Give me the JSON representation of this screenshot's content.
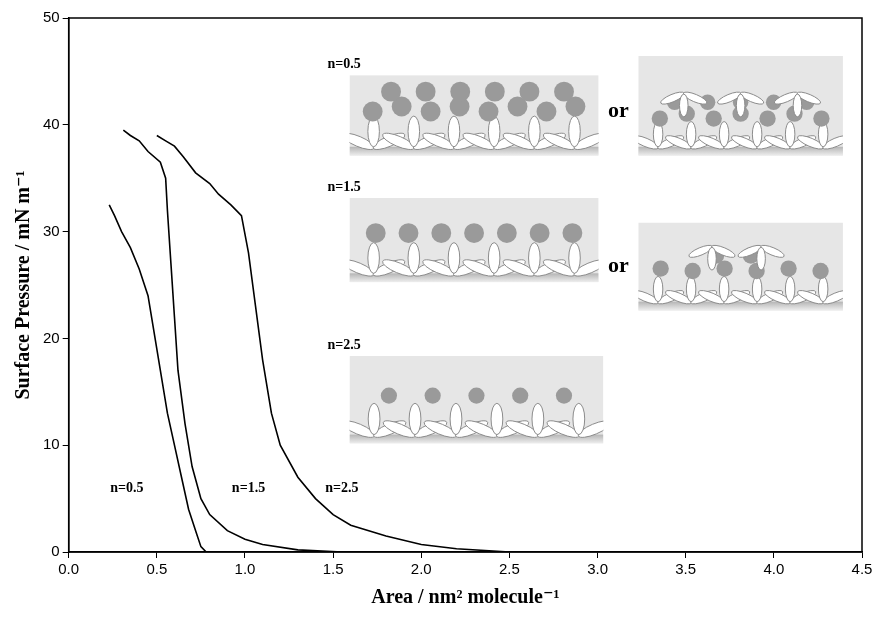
{
  "chart_data": {
    "type": "line",
    "x_label": "Area / nm² molecule⁻¹",
    "y_label": "Surface Pressure / mN m⁻¹",
    "xlim": [
      0,
      4.5
    ],
    "xticks": [
      {
        "value": 0,
        "label": "0.0"
      },
      {
        "value": 0.5,
        "label": "0.5"
      },
      {
        "value": 1,
        "label": "1.0"
      },
      {
        "value": 1.5,
        "label": "1.5"
      },
      {
        "value": 2,
        "label": "2.0"
      },
      {
        "value": 2.5,
        "label": "2.5"
      },
      {
        "value": 3,
        "label": "3.0"
      },
      {
        "value": 3.5,
        "label": "3.5"
      },
      {
        "value": 4,
        "label": "4.0"
      },
      {
        "value": 4.5,
        "label": "4.5"
      }
    ],
    "ylim": [
      0,
      50
    ],
    "yticks": [
      0,
      10,
      20,
      30,
      40,
      50
    ],
    "grid": false,
    "series": [
      {
        "color": "#000000",
        "x": [
          0.78,
          0.75,
          0.72,
          0.68,
          0.64,
          0.6,
          0.56,
          0.52,
          0.48,
          0.45,
          0.4,
          0.35,
          0.3,
          0.26,
          0.23
        ],
        "values": [
          0,
          0.5,
          2,
          4,
          7,
          10,
          13,
          17,
          21,
          24,
          26.5,
          28.5,
          30,
          31.5,
          32.5
        ]
      },
      {
        "color": "#000000",
        "x": [
          1.55,
          1.3,
          1.1,
          1.0,
          0.9,
          0.8,
          0.75,
          0.7,
          0.66,
          0.62,
          0.6,
          0.58,
          0.56,
          0.55,
          0.52,
          0.45,
          0.4,
          0.35,
          0.31
        ],
        "values": [
          0,
          0.2,
          0.7,
          1.2,
          2,
          3.5,
          5,
          8,
          12,
          17,
          22,
          27,
          32,
          35,
          36.5,
          37.5,
          38.5,
          39,
          39.5
        ]
      },
      {
        "color": "#000000",
        "x": [
          2.5,
          2.2,
          2.0,
          1.8,
          1.6,
          1.5,
          1.4,
          1.3,
          1.2,
          1.15,
          1.1,
          1.06,
          1.02,
          0.98,
          0.92,
          0.85,
          0.8,
          0.72,
          0.65,
          0.6,
          0.55,
          0.5
        ],
        "values": [
          0,
          0.3,
          0.7,
          1.5,
          2.5,
          3.5,
          5,
          7,
          10,
          13,
          18,
          23,
          28,
          31.5,
          32.5,
          33.5,
          34.5,
          35.5,
          37,
          38,
          38.5,
          39
        ]
      }
    ],
    "annotations": [
      {
        "text": "n=0.5",
        "x": 0.33,
        "y": 6
      },
      {
        "text": "n=1.5",
        "x": 1.02,
        "y": 6
      },
      {
        "text": "n=2.5",
        "x": 1.55,
        "y": 6
      }
    ],
    "inset": {
      "rows": [
        {
          "label": "n=0.5",
          "join": "or"
        },
        {
          "label": "n=1.5",
          "join": "or"
        },
        {
          "label": "n=2.5"
        }
      ]
    }
  }
}
